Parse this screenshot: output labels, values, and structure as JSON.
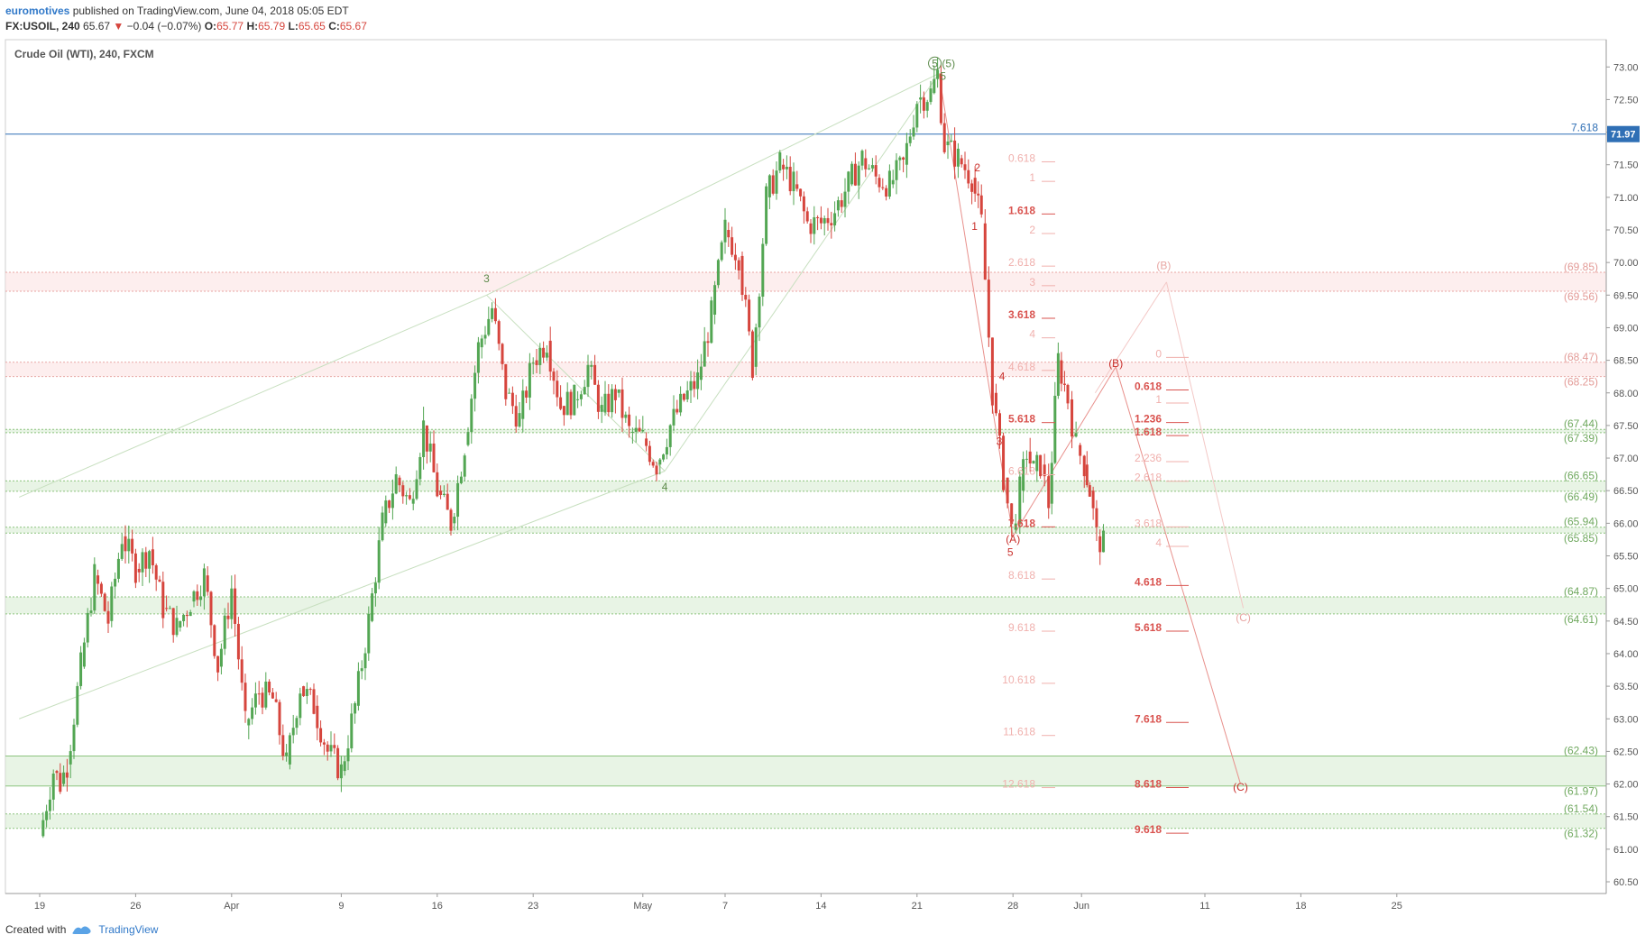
{
  "header": {
    "author": "euromotives",
    "published_text": "published on TradingView.com, June 04, 2018 05:05 EDT"
  },
  "quote": {
    "symbol": "FX:USOIL, 240",
    "last": "65.67",
    "arrow": "▼",
    "change": "−0.04 (−0.07%)",
    "o_label": "O:",
    "o": "65.77",
    "h_label": "H:",
    "h": "65.79",
    "l_label": "L:",
    "l": "65.65",
    "c_label": "C:",
    "c": "65.67"
  },
  "footer": {
    "created_with": "Created with",
    "brand": "TradingView"
  },
  "colors": {
    "up": "#53a653",
    "down": "#d6453d",
    "green_wave": "#5c8a4a",
    "fib_red": "#d9534f",
    "fib_faint": "#f0b0ad",
    "price_line": "#2f6fb5",
    "green_zone": "#d8ecd3",
    "red_zone": "#fbe3e2"
  },
  "chart_data": {
    "type": "candlestick",
    "title": "Crude Oil (WTI), 240, FXCM",
    "y_range": [
      60.5,
      73.5
    ],
    "y_ticks": [
      "60.50",
      "61.00",
      "61.50",
      "62.00",
      "62.50",
      "63.00",
      "63.50",
      "64.00",
      "64.50",
      "65.00",
      "65.50",
      "66.00",
      "66.50",
      "67.00",
      "67.50",
      "68.00",
      "68.50",
      "69.00",
      "69.50",
      "70.00",
      "70.50",
      "71.00",
      "71.50",
      "72.00",
      "72.50",
      "73.00",
      "73.50"
    ],
    "x_ticks": [
      {
        "label": "19",
        "day": 19
      },
      {
        "label": "26",
        "day": 26
      },
      {
        "label": "Apr",
        "day": 33
      },
      {
        "label": "9",
        "day": 41
      },
      {
        "label": "16",
        "day": 48
      },
      {
        "label": "23",
        "day": 55
      },
      {
        "label": "May",
        "day": 63
      },
      {
        "label": "7",
        "day": 69
      },
      {
        "label": "14",
        "day": 76
      },
      {
        "label": "21",
        "day": 83
      },
      {
        "label": "28",
        "day": 90
      },
      {
        "label": "Jun",
        "day": 95
      },
      {
        "label": "11",
        "day": 104
      },
      {
        "label": "18",
        "day": 111
      },
      {
        "label": "25",
        "day": 118
      }
    ],
    "path": [
      [
        19,
        61.2
      ],
      [
        20,
        62.2
      ],
      [
        20.5,
        62.0
      ],
      [
        21,
        62.3
      ],
      [
        22,
        63.8
      ],
      [
        23,
        65.2
      ],
      [
        24,
        64.5
      ],
      [
        25,
        65.8
      ],
      [
        26,
        65.3
      ],
      [
        27,
        65.6
      ],
      [
        28,
        64.7
      ],
      [
        29,
        64.4
      ],
      [
        30,
        64.8
      ],
      [
        31,
        65.2
      ],
      [
        32,
        63.8
      ],
      [
        33,
        65.0
      ],
      [
        34,
        62.9
      ],
      [
        35,
        63.4
      ],
      [
        36,
        63.3
      ],
      [
        37,
        62.3
      ],
      [
        38,
        63.5
      ],
      [
        39,
        63.2
      ],
      [
        40,
        62.5
      ],
      [
        41,
        62.2
      ],
      [
        42,
        63.2
      ],
      [
        43,
        64.5
      ],
      [
        44,
        66.0
      ],
      [
        45,
        66.7
      ],
      [
        46,
        66.3
      ],
      [
        47,
        67.5
      ],
      [
        48,
        66.5
      ],
      [
        49,
        66.0
      ],
      [
        50,
        67.2
      ],
      [
        51,
        68.7
      ],
      [
        52,
        69.3
      ],
      [
        53,
        68.0
      ],
      [
        54,
        67.6
      ],
      [
        55,
        68.5
      ],
      [
        56,
        68.8
      ],
      [
        57,
        67.8
      ],
      [
        58,
        67.9
      ],
      [
        59,
        68.4
      ],
      [
        60,
        67.7
      ],
      [
        61,
        68.0
      ],
      [
        62,
        67.4
      ],
      [
        63,
        67.3
      ],
      [
        64,
        66.9
      ],
      [
        65,
        67.5
      ],
      [
        66,
        67.9
      ],
      [
        67,
        68.2
      ],
      [
        68,
        69.2
      ],
      [
        69,
        70.5
      ],
      [
        70,
        70.1
      ],
      [
        71,
        68.4
      ],
      [
        72,
        71.0
      ],
      [
        73,
        71.5
      ],
      [
        74,
        71.2
      ],
      [
        75,
        70.6
      ],
      [
        76,
        70.6
      ],
      [
        77,
        70.8
      ],
      [
        78,
        71.2
      ],
      [
        79,
        71.6
      ],
      [
        80,
        71.3
      ],
      [
        81,
        71.2
      ],
      [
        82,
        71.5
      ],
      [
        83,
        72.5
      ],
      [
        84,
        72.6
      ],
      [
        84.5,
        72.9
      ],
      [
        85,
        71.8
      ],
      [
        86,
        71.6
      ],
      [
        87,
        71.3
      ],
      [
        87.7,
        70.6
      ],
      [
        88.5,
        68.0
      ],
      [
        89.3,
        66.7
      ],
      [
        89.9,
        65.9
      ],
      [
        90.5,
        66.5
      ],
      [
        91,
        67.1
      ],
      [
        91.5,
        66.8
      ],
      [
        92,
        66.9
      ],
      [
        92.6,
        66.3
      ],
      [
        93.3,
        68.5
      ],
      [
        94,
        67.9
      ],
      [
        94.6,
        67.2
      ],
      [
        95.2,
        66.9
      ],
      [
        95.6,
        66.5
      ],
      [
        96.1,
        65.8
      ],
      [
        96.6,
        65.67
      ]
    ],
    "price_line": {
      "value": 71.97,
      "label": "71.97",
      "fib_label": "7.618"
    },
    "green_levels": [
      {
        "label": "(67.44)",
        "value": 67.44
      },
      {
        "label": "(67.39)",
        "value": 67.39
      },
      {
        "label": "(66.65)",
        "value": 66.65
      },
      {
        "label": "(66.49)",
        "value": 66.49
      },
      {
        "label": "(65.94)",
        "value": 65.94
      },
      {
        "label": "(65.85)",
        "value": 65.85
      },
      {
        "label": "(64.87)",
        "value": 64.87
      },
      {
        "label": "(64.61)",
        "value": 64.61
      },
      {
        "label": "(62.43)",
        "value": 62.43
      },
      {
        "label": "(61.97)",
        "value": 61.97
      },
      {
        "label": "(61.54)",
        "value": 61.54
      },
      {
        "label": "(61.32)",
        "value": 61.32
      }
    ],
    "red_levels": [
      {
        "label": "(69.85)",
        "value": 69.85
      },
      {
        "label": "(69.56)",
        "value": 69.56
      },
      {
        "label": "(68.47)",
        "value": 68.47
      },
      {
        "label": "(68.25)",
        "value": 68.25
      }
    ],
    "fib_ext_left": [
      {
        "label": "0.618",
        "value": 71.6,
        "strong": false
      },
      {
        "label": "1",
        "value": 71.3,
        "strong": false
      },
      {
        "label": "1.618",
        "value": 70.8,
        "strong": true
      },
      {
        "label": "2",
        "value": 70.5,
        "strong": false
      },
      {
        "label": "2.618",
        "value": 70.0,
        "strong": false
      },
      {
        "label": "3",
        "value": 69.7,
        "strong": false
      },
      {
        "label": "3.618",
        "value": 69.2,
        "strong": true
      },
      {
        "label": "4",
        "value": 68.9,
        "strong": false
      },
      {
        "label": "4.618",
        "value": 68.4,
        "strong": false
      },
      {
        "label": "5.618",
        "value": 67.6,
        "strong": true
      },
      {
        "label": "6.618",
        "value": 66.8,
        "strong": false
      },
      {
        "label": "7.618",
        "value": 66.0,
        "strong": true
      },
      {
        "label": "8.618",
        "value": 65.2,
        "strong": false
      },
      {
        "label": "9.618",
        "value": 64.4,
        "strong": false
      },
      {
        "label": "10.618",
        "value": 63.6,
        "strong": false
      },
      {
        "label": "11.618",
        "value": 62.8,
        "strong": false
      },
      {
        "label": "12.618",
        "value": 62.0,
        "strong": false
      }
    ],
    "fib_ext_right": [
      {
        "label": "0",
        "value": 68.6,
        "strong": false
      },
      {
        "label": "0.618",
        "value": 68.1,
        "strong": true
      },
      {
        "label": "1",
        "value": 67.9,
        "strong": false
      },
      {
        "label": "1.236",
        "value": 67.6,
        "strong": true
      },
      {
        "label": "1.618",
        "value": 67.4,
        "strong": true
      },
      {
        "label": "2.236",
        "value": 67.0,
        "strong": false
      },
      {
        "label": "2.618",
        "value": 66.7,
        "strong": false
      },
      {
        "label": "3.618",
        "value": 66.0,
        "strong": false
      },
      {
        "label": "4",
        "value": 65.7,
        "strong": false
      },
      {
        "label": "4.618",
        "value": 65.1,
        "strong": true
      },
      {
        "label": "5.618",
        "value": 64.4,
        "strong": true
      },
      {
        "label": "7.618",
        "value": 63.0,
        "strong": true
      },
      {
        "label": "8.618",
        "value": 62.0,
        "strong": true
      },
      {
        "label": "9.618",
        "value": 61.3,
        "strong": true
      }
    ],
    "wave_labels": [
      {
        "label": "3",
        "day": 51.6,
        "value": 69.7,
        "color": "green"
      },
      {
        "label": "4",
        "day": 64.6,
        "value": 66.5,
        "color": "green"
      },
      {
        "label": "5",
        "day": 84.3,
        "value": 73.0,
        "color": "green",
        "circled": true
      },
      {
        "label": "(5)",
        "day": 85.3,
        "value": 73.0,
        "color": "green"
      },
      {
        "label": "5",
        "day": 84.9,
        "value": 72.8,
        "color": "green"
      },
      {
        "label": "2",
        "day": 87.4,
        "value": 71.4,
        "color": "red"
      },
      {
        "label": "1",
        "day": 87.2,
        "value": 70.5,
        "color": "red"
      },
      {
        "label": "4",
        "day": 89.2,
        "value": 68.2,
        "color": "red"
      },
      {
        "label": "3",
        "day": 89.0,
        "value": 67.2,
        "color": "red"
      },
      {
        "label": "(A)",
        "day": 90.0,
        "value": 65.7,
        "color": "red"
      },
      {
        "label": "5",
        "day": 89.8,
        "value": 65.5,
        "color": "red"
      },
      {
        "label": "(B)",
        "day": 97.5,
        "value": 68.4,
        "color": "red"
      },
      {
        "label": "(B)",
        "day": 101.0,
        "value": 69.9,
        "color": "faint"
      },
      {
        "label": "(C)",
        "day": 106.6,
        "value": 61.9,
        "color": "red"
      },
      {
        "label": "(C)",
        "day": 106.8,
        "value": 64.5,
        "color": "faint"
      }
    ],
    "trendlines": [
      {
        "from": [
          17.5,
          66.4
        ],
        "to": [
          51.6,
          69.5
        ],
        "color": "green_faint"
      },
      {
        "from": [
          51.6,
          69.5
        ],
        "to": [
          84.6,
          72.9
        ],
        "color": "green_faint"
      },
      {
        "from": [
          17.5,
          63.0
        ],
        "to": [
          64.6,
          66.8
        ],
        "color": "green_faint"
      },
      {
        "from": [
          51.6,
          69.5
        ],
        "to": [
          64.6,
          66.8
        ],
        "color": "green_faint"
      },
      {
        "from": [
          64.6,
          66.8
        ],
        "to": [
          84.6,
          72.9
        ],
        "color": "green_faint"
      },
      {
        "from": [
          84.6,
          72.9
        ],
        "to": [
          90.0,
          65.8
        ],
        "color": "red"
      },
      {
        "from": [
          90.0,
          65.8
        ],
        "to": [
          97.5,
          68.4
        ],
        "color": "red"
      },
      {
        "from": [
          97.5,
          68.4
        ],
        "to": [
          106.6,
          62.0
        ],
        "color": "red"
      },
      {
        "from": [
          96.0,
          68.0
        ],
        "to": [
          101.2,
          69.7
        ],
        "color": "faint"
      },
      {
        "from": [
          101.2,
          69.7
        ],
        "to": [
          106.8,
          64.7
        ],
        "color": "faint"
      }
    ]
  }
}
